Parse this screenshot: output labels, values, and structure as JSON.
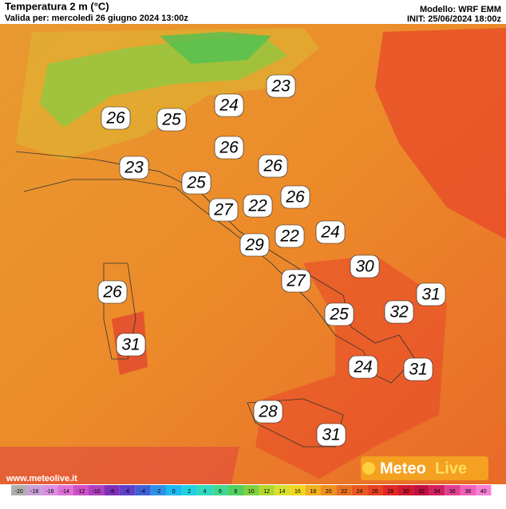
{
  "header": {
    "title": "Temperatura 2 m (°C)",
    "valid": "Valida per: mercoledì 26 giugno 2024 13:00z",
    "model": "Modello: WRF EMM",
    "init": "INIT: 25/06/2024 18:00z"
  },
  "map_labels": [
    23,
    24,
    26,
    25,
    26,
    23,
    26,
    25,
    26,
    27,
    22,
    24,
    22,
    29,
    30,
    27,
    26,
    31,
    32,
    25,
    31,
    24,
    31,
    28,
    31
  ],
  "website": "www.meteolive.it",
  "logo": {
    "part1": "Meteo",
    "part2": "Live"
  },
  "colorbar": {
    "ticks": [
      -20,
      -18,
      -16,
      -14,
      -12,
      -10,
      -8,
      -6,
      -4,
      -2,
      0,
      2,
      4,
      6,
      8,
      10,
      12,
      14,
      16,
      18,
      20,
      22,
      24,
      26,
      28,
      30,
      32,
      34,
      36,
      38,
      40
    ],
    "colors": [
      "#b0b0b0",
      "#c8a0d8",
      "#d890e0",
      "#e070d8",
      "#d050c8",
      "#b040c0",
      "#8030b8",
      "#6040c8",
      "#4060d8",
      "#3090e8",
      "#20b8f0",
      "#20d0e0",
      "#30d8c0",
      "#40d890",
      "#50d060",
      "#80d040",
      "#b0d830",
      "#d8e030",
      "#f0d820",
      "#f0b020",
      "#f09020",
      "#e87020",
      "#e85820",
      "#e84020",
      "#e02828",
      "#d01830",
      "#c01040",
      "#d02060",
      "#e04090",
      "#f060b8",
      "#f880d8"
    ]
  }
}
